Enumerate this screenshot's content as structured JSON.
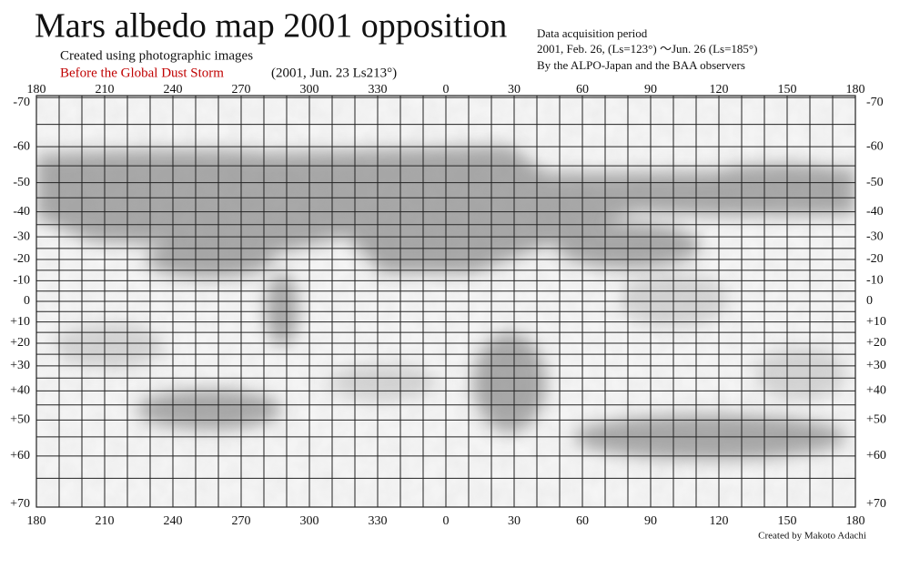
{
  "header": {
    "title": "Mars albedo map 2001 opposition",
    "subtitle": "Created using photographic images",
    "highlight": "Before the Global Dust Storm",
    "highlight_note": "(2001, Jun. 23  Ls213°)"
  },
  "info": {
    "heading": "Data acquisition period",
    "period": "2001, Feb. 26, (Ls=123°) ～Jun. 26 (Ls=185°)",
    "observers": "By the ALPO-Japan and the BAA observers"
  },
  "credit": "Created by Makoto Adachi",
  "longitudes": [
    180,
    210,
    240,
    270,
    300,
    330,
    0,
    30,
    60,
    90,
    120,
    150,
    180
  ],
  "latitudes": [
    -70,
    -60,
    -50,
    -40,
    -30,
    -20,
    -10,
    0,
    {
      "value": 10,
      "label": "+10"
    },
    {
      "value": 20,
      "label": "+20"
    },
    {
      "value": 30,
      "label": "+30"
    },
    {
      "value": 40,
      "label": "+40"
    },
    {
      "value": 50,
      "label": "+50"
    },
    {
      "value": 60,
      "label": "+60"
    },
    {
      "value": 70,
      "label": "+70"
    }
  ]
}
